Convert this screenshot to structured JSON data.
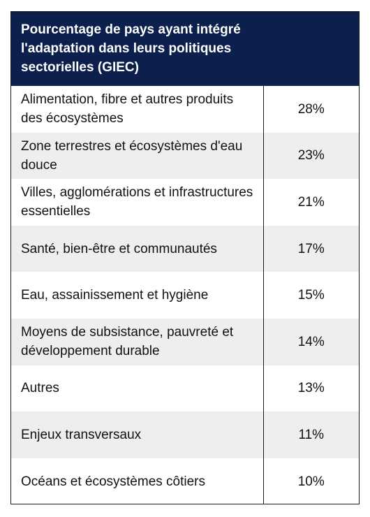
{
  "header": {
    "title": "Pourcentage de pays ayant intégré l'adaptation  dans leurs politiques sectorielles (GIEC)"
  },
  "table": {
    "rows": [
      [
        "Alimentation, fibre et autres produits des écosystèmes",
        "28%"
      ],
      [
        "Zone terrestres et écosystèmes d'eau douce",
        "23%"
      ],
      [
        "Villes, agglomérations et infrastructures essentielles",
        "21%"
      ],
      [
        "Santé, bien-être et communautés",
        "17%"
      ],
      [
        "Eau, assainissement et hygiène",
        "15%"
      ],
      [
        "Moyens de subsistance, pauvreté et développement durable",
        "14%"
      ],
      [
        "Autres",
        "13%"
      ],
      [
        "Enjeux transversaux",
        "11%"
      ],
      [
        "Océans et écosystèmes côtiers",
        "10%"
      ]
    ]
  }
}
